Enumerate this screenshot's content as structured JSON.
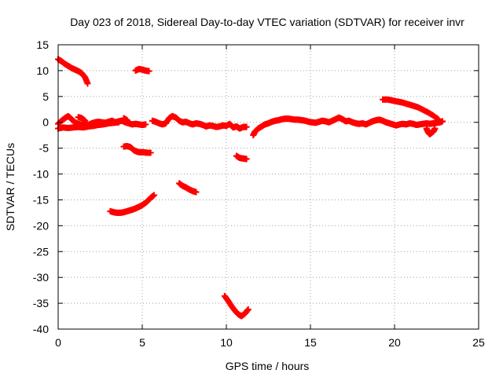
{
  "chart_data": {
    "type": "scatter",
    "title": "Day 023 of 2018, Sidereal Day-to-day VTEC variation (SDTVAR) for receiver invr",
    "xlabel": "GPS time / hours",
    "ylabel": "SDTVAR / TECUs",
    "xlim": [
      0,
      25
    ],
    "ylim": [
      -40,
      15
    ],
    "x_ticks": [
      0,
      5,
      10,
      15,
      20,
      25
    ],
    "y_ticks": [
      15,
      10,
      5,
      0,
      -5,
      -10,
      -15,
      -20,
      -25,
      -30,
      -35,
      -40
    ],
    "grid": true,
    "grid_style": "dotted",
    "marker": "plus",
    "series_color": "#ff0000",
    "series": [
      {
        "values": [
          [
            0.0,
            12.2
          ],
          [
            0.2,
            11.8
          ],
          [
            0.4,
            11.3
          ],
          [
            0.6,
            10.9
          ],
          [
            0.8,
            10.5
          ],
          [
            1.0,
            10.2
          ],
          [
            1.2,
            9.9
          ],
          [
            1.4,
            9.5
          ],
          [
            1.6,
            8.7
          ],
          [
            1.75,
            7.5
          ],
          [
            4.6,
            10.0
          ],
          [
            4.8,
            10.3
          ],
          [
            5.0,
            10.2
          ],
          [
            5.2,
            10.0
          ],
          [
            5.4,
            9.9
          ],
          [
            19.3,
            4.4
          ],
          [
            19.6,
            4.4
          ],
          [
            19.9,
            4.2
          ],
          [
            20.2,
            4.0
          ],
          [
            20.5,
            3.8
          ],
          [
            20.8,
            3.5
          ],
          [
            21.1,
            3.2
          ],
          [
            21.4,
            2.9
          ],
          [
            21.7,
            2.4
          ],
          [
            22.0,
            1.9
          ],
          [
            22.3,
            1.3
          ],
          [
            22.6,
            0.6
          ],
          [
            0.0,
            -0.3
          ],
          [
            0.2,
            0.3
          ],
          [
            0.4,
            0.8
          ],
          [
            0.6,
            1.2
          ],
          [
            0.8,
            0.6
          ],
          [
            1.0,
            0.0
          ],
          [
            1.2,
            -0.3
          ],
          [
            1.4,
            -0.5
          ],
          [
            1.6,
            -0.4
          ],
          [
            1.8,
            -0.5
          ],
          [
            2.0,
            -0.2
          ],
          [
            2.2,
            0.0
          ],
          [
            2.4,
            0.1
          ],
          [
            2.6,
            0.0
          ],
          [
            2.8,
            -0.1
          ],
          [
            3.0,
            0.1
          ],
          [
            3.2,
            0.3
          ],
          [
            3.4,
            0.0
          ],
          [
            3.6,
            0.2
          ],
          [
            3.8,
            0.3
          ],
          [
            4.0,
            0.0
          ],
          [
            4.2,
            -0.2
          ],
          [
            4.4,
            -0.4
          ],
          [
            4.6,
            -0.3
          ],
          [
            4.8,
            -0.4
          ],
          [
            5.0,
            -0.5
          ],
          [
            5.2,
            -0.4
          ],
          [
            0.0,
            -1.2
          ],
          [
            0.3,
            -1.0
          ],
          [
            0.6,
            -1.1
          ],
          [
            0.9,
            -1.0
          ],
          [
            1.2,
            -0.9
          ],
          [
            1.5,
            -1.0
          ],
          [
            1.8,
            -0.8
          ],
          [
            2.1,
            -0.7
          ],
          [
            2.4,
            -0.5
          ],
          [
            2.7,
            -0.4
          ],
          [
            3.0,
            -0.2
          ],
          [
            3.3,
            -0.1
          ],
          [
            3.6,
            0.0
          ],
          [
            1.2,
            1.0
          ],
          [
            1.4,
            0.8
          ],
          [
            1.6,
            0.3
          ],
          [
            3.9,
            0.8
          ],
          [
            4.1,
            0.4
          ],
          [
            5.6,
            0.3
          ],
          [
            5.8,
            0.1
          ],
          [
            6.0,
            -0.2
          ],
          [
            6.2,
            -0.4
          ],
          [
            6.4,
            -0.2
          ],
          [
            6.6,
            0.8
          ],
          [
            6.8,
            1.2
          ],
          [
            7.0,
            0.9
          ],
          [
            7.2,
            0.3
          ],
          [
            7.4,
            0.0
          ],
          [
            7.6,
            0.1
          ],
          [
            7.8,
            -0.2
          ],
          [
            8.0,
            -0.4
          ],
          [
            8.2,
            -0.2
          ],
          [
            8.4,
            -0.3
          ],
          [
            8.6,
            -0.5
          ],
          [
            8.8,
            -0.8
          ],
          [
            9.0,
            -0.6
          ],
          [
            9.2,
            -0.7
          ],
          [
            9.4,
            -0.9
          ],
          [
            9.6,
            -0.8
          ],
          [
            9.8,
            -0.6
          ],
          [
            10.0,
            -0.7
          ],
          [
            10.2,
            -0.3
          ],
          [
            10.4,
            -1.0
          ],
          [
            10.6,
            -0.8
          ],
          [
            10.8,
            -1.2
          ],
          [
            11.0,
            -0.9
          ],
          [
            11.2,
            -0.9
          ],
          [
            11.6,
            -2.5
          ],
          [
            11.7,
            -1.8
          ],
          [
            11.9,
            -1.2
          ],
          [
            12.1,
            -0.8
          ],
          [
            12.3,
            -0.4
          ],
          [
            12.5,
            -0.2
          ],
          [
            12.7,
            0.1
          ],
          [
            12.9,
            0.3
          ],
          [
            13.1,
            0.4
          ],
          [
            13.3,
            0.6
          ],
          [
            13.5,
            0.7
          ],
          [
            13.7,
            0.7
          ],
          [
            13.9,
            0.6
          ],
          [
            14.1,
            0.5
          ],
          [
            14.3,
            0.5
          ],
          [
            14.5,
            0.4
          ],
          [
            14.7,
            0.3
          ],
          [
            14.9,
            0.1
          ],
          [
            15.1,
            0.0
          ],
          [
            15.3,
            -0.1
          ],
          [
            15.5,
            0.1
          ],
          [
            15.7,
            0.3
          ],
          [
            15.9,
            0.2
          ],
          [
            16.1,
            0.0
          ],
          [
            16.3,
            0.3
          ],
          [
            16.5,
            0.6
          ],
          [
            16.7,
            0.9
          ],
          [
            16.9,
            0.6
          ],
          [
            17.1,
            0.2
          ],
          [
            17.3,
            0.3
          ],
          [
            17.5,
            0.0
          ],
          [
            17.7,
            -0.2
          ],
          [
            17.9,
            -0.3
          ],
          [
            18.1,
            -0.2
          ],
          [
            18.3,
            -0.4
          ],
          [
            18.5,
            -0.1
          ],
          [
            18.7,
            0.2
          ],
          [
            18.9,
            0.4
          ],
          [
            19.1,
            0.5
          ],
          [
            19.3,
            0.3
          ],
          [
            19.5,
            0.0
          ],
          [
            19.7,
            -0.2
          ],
          [
            19.9,
            -0.4
          ],
          [
            20.1,
            -0.6
          ],
          [
            20.3,
            -0.4
          ],
          [
            20.5,
            -0.3
          ],
          [
            20.7,
            -0.4
          ],
          [
            20.9,
            -0.2
          ],
          [
            21.1,
            -0.3
          ],
          [
            21.3,
            -0.5
          ],
          [
            21.5,
            -0.4
          ],
          [
            21.7,
            -0.3
          ],
          [
            21.9,
            -0.2
          ],
          [
            22.1,
            -0.3
          ],
          [
            22.3,
            -0.2
          ],
          [
            22.5,
            -0.1
          ],
          [
            22.7,
            0.0
          ],
          [
            22.85,
            0.2
          ],
          [
            21.9,
            -1.2
          ],
          [
            22.0,
            -1.9
          ],
          [
            22.1,
            -2.3
          ],
          [
            22.3,
            -1.8
          ],
          [
            22.4,
            -1.2
          ],
          [
            3.9,
            -4.7
          ],
          [
            4.1,
            -4.6
          ],
          [
            4.3,
            -4.8
          ],
          [
            4.5,
            -5.4
          ],
          [
            4.7,
            -5.7
          ],
          [
            4.9,
            -5.8
          ],
          [
            5.1,
            -5.8
          ],
          [
            5.3,
            -5.9
          ],
          [
            5.5,
            -5.9
          ],
          [
            10.6,
            -6.5
          ],
          [
            10.8,
            -6.9
          ],
          [
            11.0,
            -7.0
          ],
          [
            11.2,
            -7.1
          ],
          [
            7.2,
            -11.8
          ],
          [
            7.4,
            -12.3
          ],
          [
            7.6,
            -12.6
          ],
          [
            7.8,
            -13.0
          ],
          [
            8.0,
            -13.3
          ],
          [
            8.2,
            -13.5
          ],
          [
            3.1,
            -17.2
          ],
          [
            3.3,
            -17.4
          ],
          [
            3.5,
            -17.5
          ],
          [
            3.7,
            -17.5
          ],
          [
            3.9,
            -17.4
          ],
          [
            4.1,
            -17.2
          ],
          [
            4.3,
            -17.0
          ],
          [
            4.5,
            -16.8
          ],
          [
            4.7,
            -16.5
          ],
          [
            4.9,
            -16.2
          ],
          [
            5.1,
            -15.8
          ],
          [
            5.3,
            -15.3
          ],
          [
            5.5,
            -14.6
          ],
          [
            5.7,
            -14.1
          ],
          [
            9.9,
            -33.6
          ],
          [
            10.1,
            -34.5
          ],
          [
            10.3,
            -35.5
          ],
          [
            10.5,
            -36.4
          ],
          [
            10.7,
            -37.1
          ],
          [
            10.9,
            -37.5
          ],
          [
            11.1,
            -37.0
          ],
          [
            11.3,
            -36.2
          ]
        ]
      }
    ]
  }
}
